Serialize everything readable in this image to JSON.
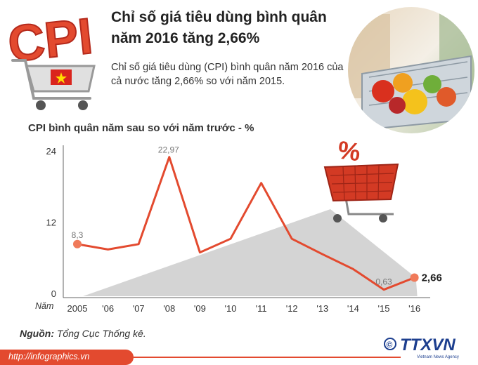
{
  "header": {
    "logo_text": "CPI",
    "title": "Chỉ số giá tiêu dùng bình quân năm 2016 tăng 2,66%",
    "lead": "Chỉ số giá tiêu dùng (CPI) bình quân năm 2016 của cả nước tăng 2,66% so với năm 2015."
  },
  "chart_title": "CPI bình quân năm sau so với năm trước - %",
  "chart_data": {
    "type": "line",
    "title": "CPI bình quân năm sau so với năm trước - %",
    "xlabel": "Năm",
    "ylabel": "",
    "categories": [
      "2005",
      "'06",
      "'07",
      "'08",
      "'09",
      "'10",
      "'11",
      "'12",
      "'13",
      "'14",
      "'15",
      "'16"
    ],
    "values": [
      8.3,
      7.4,
      8.3,
      22.97,
      6.9,
      9.2,
      18.6,
      9.2,
      6.6,
      4.1,
      0.63,
      2.66
    ],
    "data_labels": {
      "0": "8,3",
      "3": "22,97",
      "10": "0,63",
      "11": "2,66"
    },
    "yticks": [
      "0",
      "12",
      "24"
    ],
    "ylim": [
      0,
      24
    ],
    "grid": false,
    "colors": {
      "line": "#e34a2f",
      "point": "#f07a5a",
      "axis": "#666666"
    },
    "shading": "grey wedge behind the line rising toward 2016"
  },
  "source": {
    "label": "Nguồn:",
    "text": "Tổng Cục Thống kê."
  },
  "footer": {
    "url": "http://infographics.vn",
    "copyright": "©",
    "agency": "TTXVN",
    "agency_sub": "Vietnam News Agency"
  },
  "decor": {
    "cart_badge": "%",
    "flag_icon": "vietnam-flag-icon",
    "photo": "supermarket-cart-photo"
  },
  "colors": {
    "accent": "#e34a2f",
    "dark_red": "#b52a1c",
    "text": "#333333",
    "shade": "#c8c8c8"
  }
}
